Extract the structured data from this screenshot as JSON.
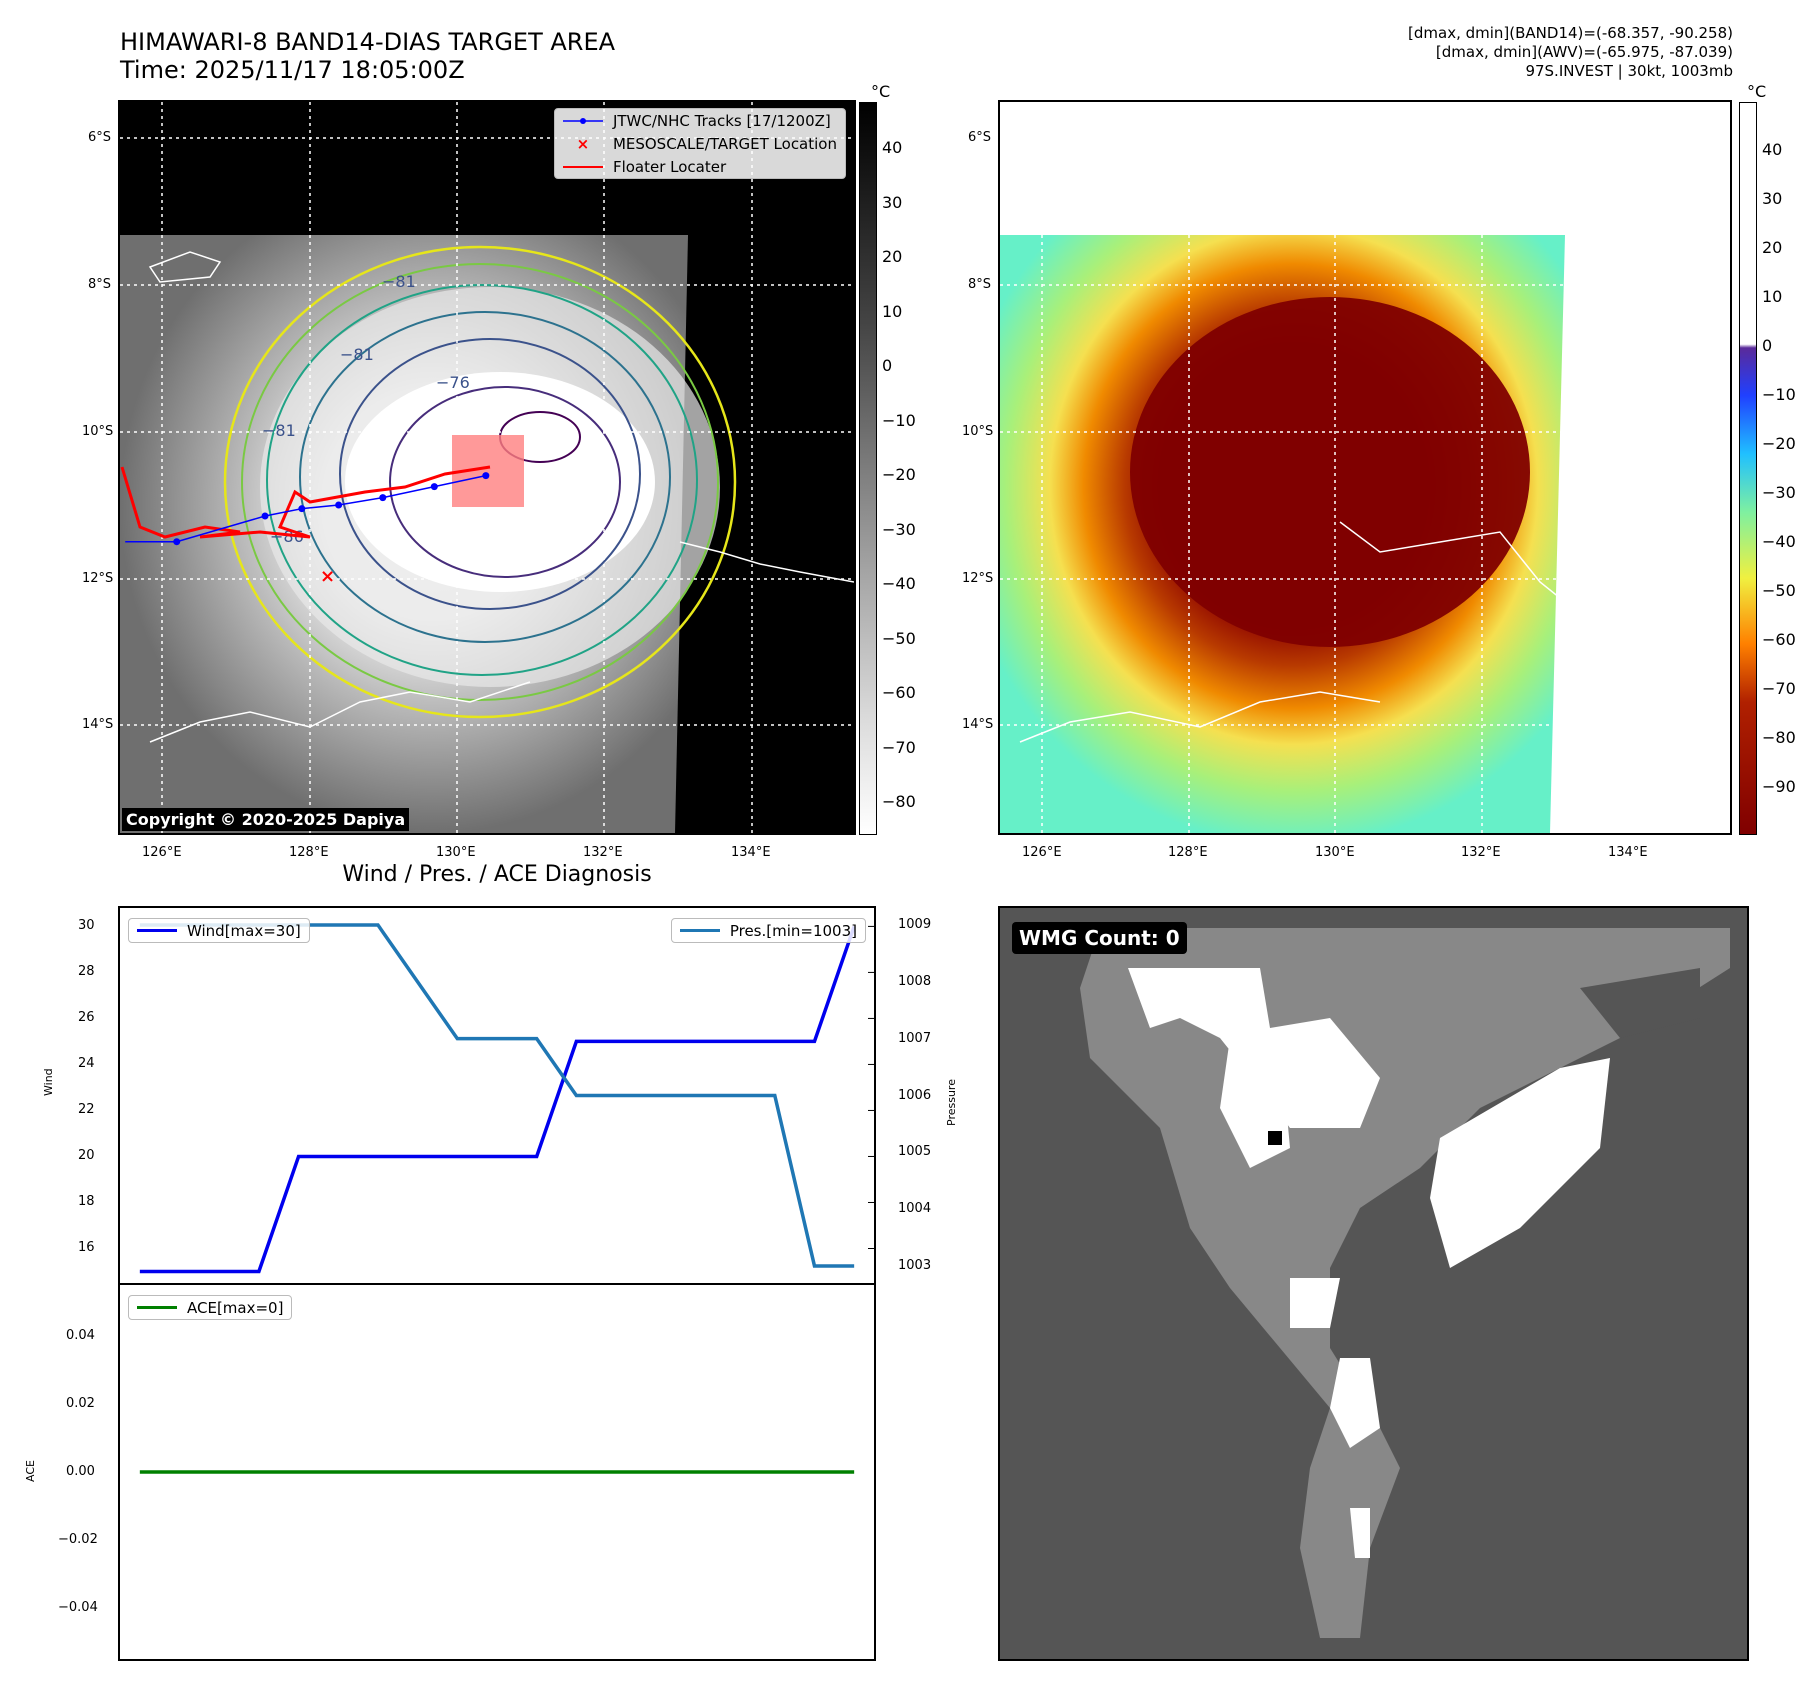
{
  "header": {
    "title_line1": "HIMAWARI-8 BAND14-DIAS TARGET AREA",
    "title_line2": "Time: 2025/11/17 18:05:00Z",
    "info_line1": "[dmax, dmin](BAND14)=(-68.357, -90.258)",
    "info_line2": "[dmax, dmin](AWV)=(-65.975, -87.039)",
    "info_line3": "97S.INVEST | 30kt, 1003mb"
  },
  "colors": {
    "wind": "#0000ee",
    "pressure": "#1f77b4",
    "ace": "#008000",
    "track": "#0000ff",
    "floater": "#ff0000",
    "target": "#ff0000"
  },
  "map_left": {
    "colorbar_unit": "°C",
    "colorbar_ticks": [
      "40",
      "30",
      "20",
      "10",
      "0",
      "−10",
      "−20",
      "−30",
      "−40",
      "−50",
      "−60",
      "−70",
      "−80"
    ],
    "lat_labels": [
      "6°S",
      "8°S",
      "10°S",
      "12°S",
      "14°S"
    ],
    "lon_labels": [
      "126°E",
      "128°E",
      "130°E",
      "132°E",
      "134°E"
    ],
    "contour_labels": [
      "−81",
      "−76",
      "−81",
      "−86",
      "−81"
    ],
    "legend": [
      {
        "label": "JTWC/NHC Tracks [17/1200Z]",
        "kind": "track"
      },
      {
        "label": "MESOSCALE/TARGET Location",
        "kind": "target"
      },
      {
        "label": "Floater Locater",
        "kind": "floater"
      }
    ],
    "copyright": "Copyright © 2020-2025 Dapiya",
    "track_points": [
      [
        125.5,
        -11.5
      ],
      [
        126.2,
        -11.5
      ],
      [
        127.4,
        -11.15
      ],
      [
        127.9,
        -11.05
      ],
      [
        128.4,
        -11.0
      ],
      [
        129.0,
        -10.9
      ],
      [
        129.7,
        -10.75
      ],
      [
        130.4,
        -10.6
      ]
    ],
    "target_location": [
      128.25,
      -11.97
    ]
  },
  "map_right": {
    "colorbar_unit": "°C",
    "colorbar_ticks": [
      "40",
      "30",
      "20",
      "10",
      "0",
      "−10",
      "−20",
      "−30",
      "−40",
      "−50",
      "−60",
      "−70",
      "−80",
      "−90"
    ],
    "lat_labels": [
      "6°S",
      "8°S",
      "10°S",
      "12°S",
      "14°S"
    ],
    "lon_labels": [
      "126°E",
      "128°E",
      "130°E",
      "132°E",
      "134°E"
    ]
  },
  "diag": {
    "title": "Wind / Pres. / ACE Diagnosis",
    "wind_ylabel": "Wind",
    "pressure_ylabel": "Pressure",
    "ace_ylabel": "ACE",
    "wind_legend": "Wind[max=30]",
    "pressure_legend": "Pres.[min=1003]",
    "ace_legend": "ACE[max=0]",
    "wind_ticks": [
      "30",
      "28",
      "26",
      "24",
      "22",
      "20",
      "18",
      "16"
    ],
    "pressure_ticks": [
      "1009",
      "1008",
      "1007",
      "1006",
      "1005",
      "1004",
      "1003"
    ],
    "ace_ticks": [
      "0.04",
      "0.02",
      "0.00",
      "−0.02",
      "−0.04"
    ]
  },
  "wmg": {
    "label": "WMG Count: 0"
  },
  "chart_data": [
    {
      "type": "line",
      "title": "Wind / Pres. / ACE Diagnosis",
      "xlabel": "",
      "ylabel": "Wind",
      "ylim": [
        14.5,
        30.8
      ],
      "x": [
        0,
        1,
        2,
        3,
        4,
        5,
        6,
        7,
        8,
        9,
        10,
        11,
        12,
        13,
        14,
        15,
        16,
        17,
        18
      ],
      "series": [
        {
          "name": "Wind[max=30]",
          "axis": "left",
          "values": [
            15,
            15,
            15,
            15,
            20,
            20,
            20,
            20,
            20,
            20,
            20,
            25,
            25,
            25,
            25,
            25,
            25,
            25,
            30
          ]
        },
        {
          "name": "Pres.[min=1003]",
          "axis": "right",
          "ylim": [
            1002.7,
            1009.3
          ],
          "values": [
            1009,
            1009,
            1009,
            1009,
            1009,
            1009,
            1009,
            1008,
            1007,
            1007,
            1007,
            1006,
            1006,
            1006,
            1006,
            1006,
            1006,
            1003,
            1003
          ]
        }
      ]
    },
    {
      "type": "line",
      "ylabel": "ACE",
      "ylim": [
        -0.055,
        0.055
      ],
      "x": [
        0,
        1,
        2,
        3,
        4,
        5,
        6,
        7,
        8,
        9,
        10,
        11,
        12,
        13,
        14,
        15,
        16,
        17,
        18
      ],
      "series": [
        {
          "name": "ACE[max=0]",
          "values": [
            0,
            0,
            0,
            0,
            0,
            0,
            0,
            0,
            0,
            0,
            0,
            0,
            0,
            0,
            0,
            0,
            0,
            0,
            0
          ]
        }
      ]
    }
  ]
}
